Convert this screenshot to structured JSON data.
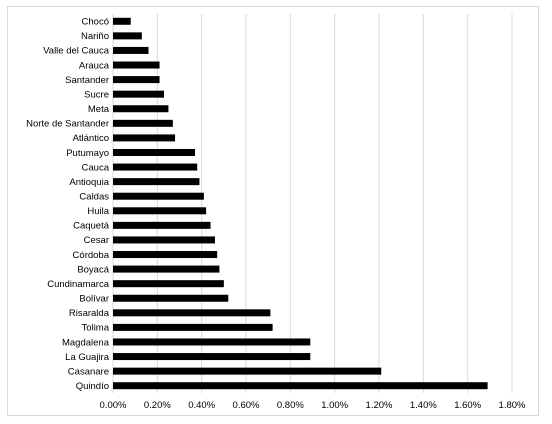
{
  "chart_data": {
    "type": "bar",
    "orientation": "horizontal",
    "title": "",
    "xlabel": "",
    "ylabel": "",
    "categories": [
      "Chocó",
      "Nariño",
      "Valle del Cauca",
      "Arauca",
      "Santander",
      "Sucre",
      "Meta",
      "Norte de Santander",
      "Atlántico",
      "Putumayo",
      "Cauca",
      "Antioquia",
      "Caldas",
      "Huila",
      "Caquetá",
      "Cesar",
      "Córdoba",
      "Boyacá",
      "Cundinamarca",
      "Bolívar",
      "Risaralda",
      "Tolima",
      "Magdalena",
      "La Guajira",
      "Casanare",
      "Quindío"
    ],
    "values": [
      0.08,
      0.13,
      0.16,
      0.21,
      0.21,
      0.23,
      0.25,
      0.27,
      0.28,
      0.37,
      0.38,
      0.39,
      0.41,
      0.42,
      0.44,
      0.46,
      0.47,
      0.48,
      0.5,
      0.52,
      0.71,
      0.72,
      0.89,
      0.89,
      1.21,
      1.69
    ],
    "xlim": [
      0,
      1.8
    ],
    "x_ticks": [
      0,
      0.2,
      0.4,
      0.6,
      0.8,
      1.0,
      1.2,
      1.4,
      1.6,
      1.8
    ],
    "x_tick_labels": [
      "0.00%",
      "0.20%",
      "0.40%",
      "0.60%",
      "0.80%",
      "1.00%",
      "1.20%",
      "1.40%",
      "1.60%",
      "1.80%"
    ],
    "grid": "vertical",
    "legend": "none",
    "colors": {
      "bar": "#000000",
      "grid": "#d9d9d9",
      "frame": "#d9d9d9"
    }
  }
}
